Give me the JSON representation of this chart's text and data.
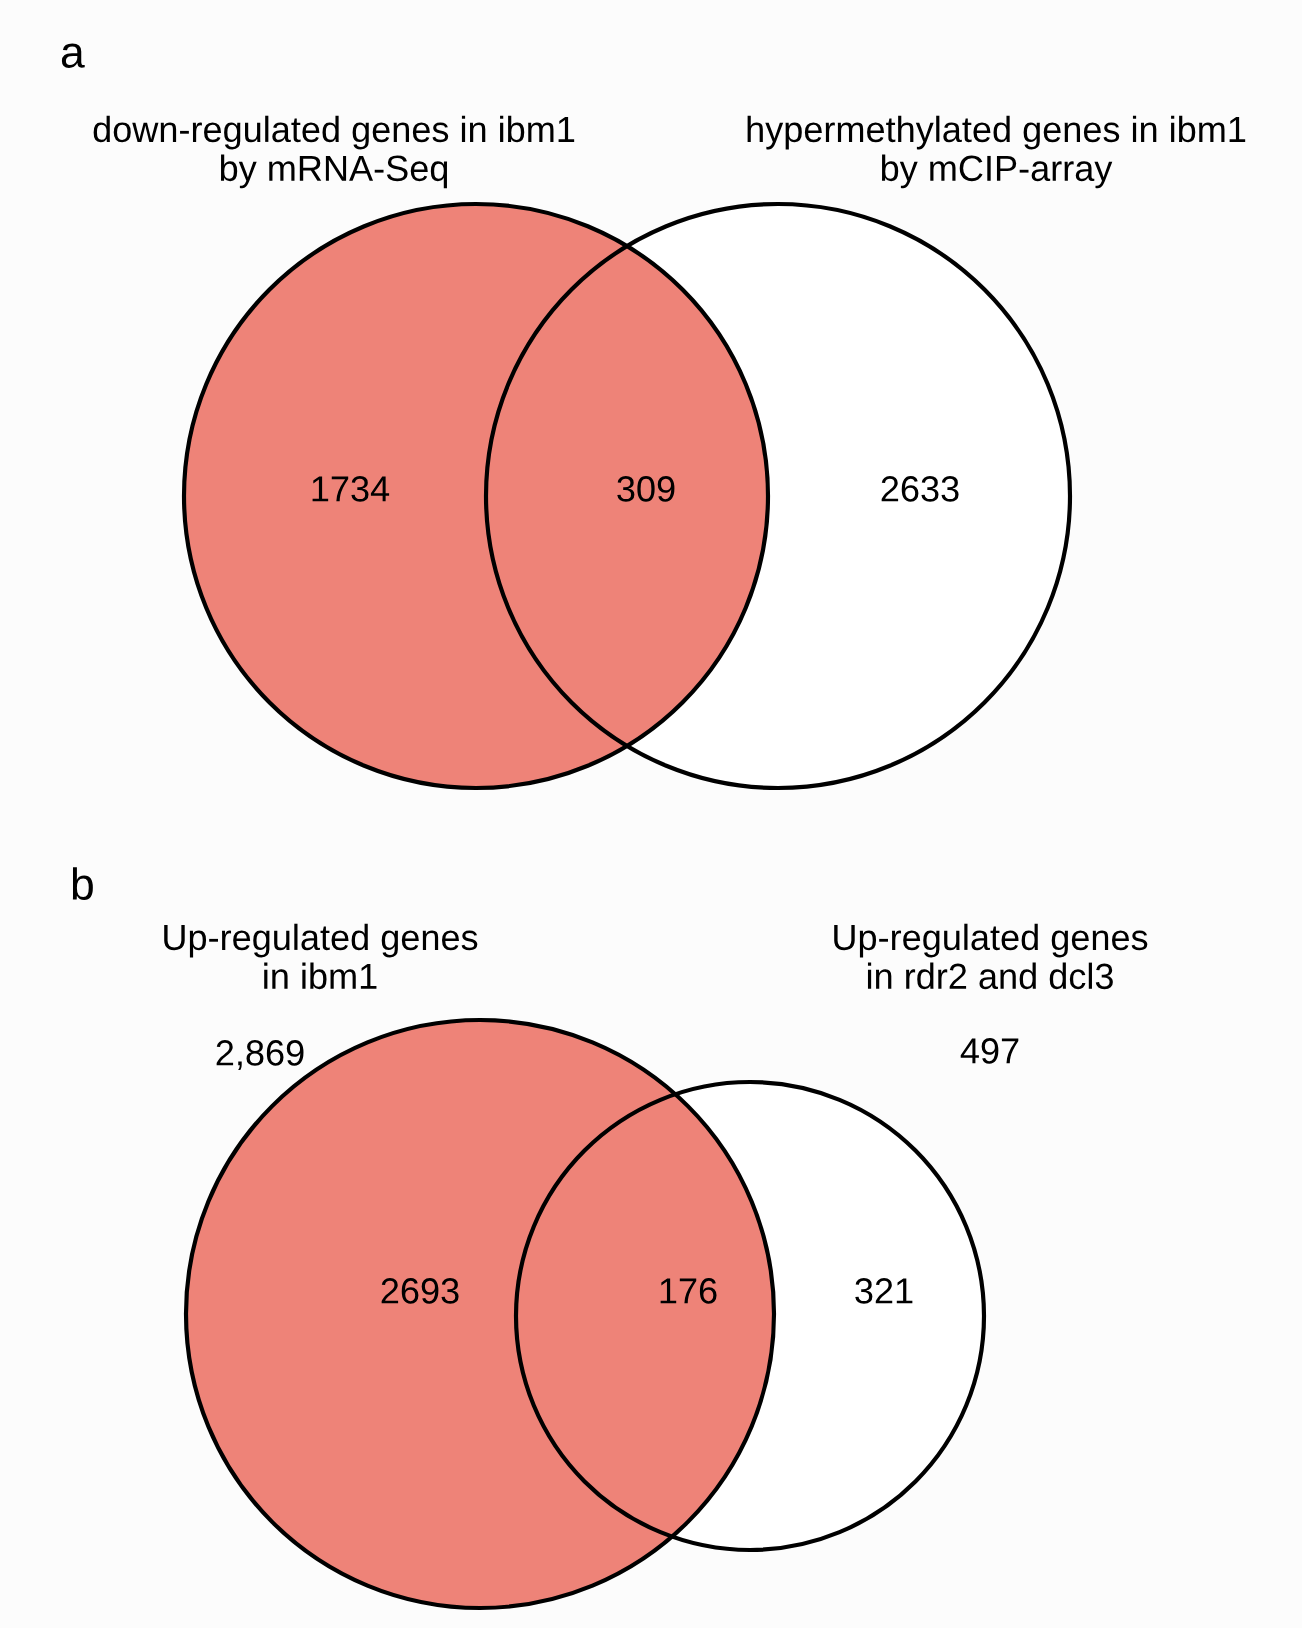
{
  "chart_data": [
    {
      "type": "other",
      "title": "a",
      "categories": [
        null,
        null,
        null
      ],
      "values": [
        1734,
        309,
        2633
      ],
      "colors": [
        "#ee8378",
        "#ee8378",
        "#ffffff"
      ],
      "data_labels": true,
      "annotations": [
        "down-regulated genes in ibm1\nby mRNA-Seq",
        "hypermethylated genes in ibm1\nby mCIP-array"
      ]
    },
    {
      "type": "other",
      "title": "b",
      "categories": [
        null,
        null,
        null
      ],
      "values": [
        2693,
        176,
        321
      ],
      "colors": [
        "#ee8378",
        "#ee8378",
        "#ffffff"
      ],
      "data_labels": true,
      "annotations": [
        "Up-regulated genes\nin ibm1",
        "Up-regulated genes\nin rdr2 and dcl3",
        "2,869",
        "497"
      ]
    }
  ]
}
